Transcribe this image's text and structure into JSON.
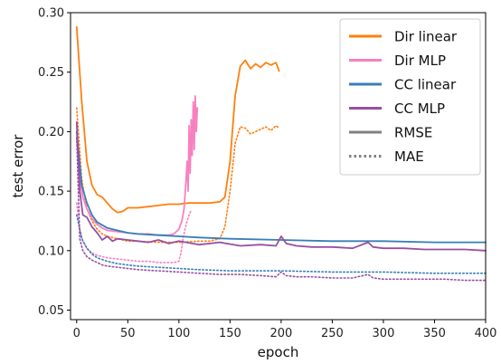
{
  "chart_data": {
    "type": "line",
    "xlabel": "epoch",
    "ylabel": "test error",
    "xlim": [
      -6,
      400
    ],
    "ylim": [
      0.042,
      0.3
    ],
    "x_ticks": [
      0,
      50,
      100,
      150,
      200,
      250,
      300,
      350,
      400
    ],
    "y_ticks": [
      0.05,
      0.1,
      0.15,
      0.2,
      0.25,
      0.3
    ],
    "y_tick_labels": [
      "0.05",
      "0.10",
      "0.15",
      "0.20",
      "0.25",
      "0.30"
    ],
    "grid": false,
    "legend_position": "top-right",
    "legend": [
      {
        "label": "Dir linear",
        "color": "#ff7f0e",
        "style": "solid"
      },
      {
        "label": "Dir MLP",
        "color": "#f781bf",
        "style": "solid"
      },
      {
        "label": "CC linear",
        "color": "#377eb8",
        "style": "solid"
      },
      {
        "label": "CC MLP",
        "color": "#984ea3",
        "style": "solid"
      },
      {
        "label": "RMSE",
        "color": "#808080",
        "style": "solid"
      },
      {
        "label": "MAE",
        "color": "#808080",
        "style": "dotted"
      }
    ],
    "series": [
      {
        "model": "Dir linear",
        "metric": "RMSE",
        "color": "#ff7f0e",
        "style": "solid",
        "x": [
          0,
          5,
          10,
          15,
          20,
          25,
          30,
          35,
          40,
          45,
          50,
          60,
          70,
          80,
          90,
          100,
          110,
          120,
          130,
          140,
          145,
          150,
          155,
          160,
          165,
          170,
          175,
          180,
          185,
          190,
          195,
          198
        ],
        "y": [
          0.288,
          0.225,
          0.175,
          0.155,
          0.147,
          0.145,
          0.14,
          0.135,
          0.132,
          0.133,
          0.136,
          0.136,
          0.137,
          0.138,
          0.139,
          0.139,
          0.14,
          0.14,
          0.14,
          0.141,
          0.145,
          0.175,
          0.23,
          0.255,
          0.26,
          0.253,
          0.257,
          0.254,
          0.258,
          0.256,
          0.258,
          0.251
        ]
      },
      {
        "model": "Dir linear",
        "metric": "MAE",
        "color": "#ff7f0e",
        "style": "dotted",
        "x": [
          0,
          5,
          10,
          15,
          20,
          25,
          30,
          40,
          50,
          60,
          80,
          100,
          120,
          130,
          140,
          145,
          150,
          155,
          160,
          165,
          170,
          175,
          180,
          185,
          190,
          195,
          198
        ],
        "y": [
          0.22,
          0.16,
          0.135,
          0.125,
          0.118,
          0.114,
          0.112,
          0.11,
          0.108,
          0.108,
          0.107,
          0.107,
          0.108,
          0.108,
          0.11,
          0.12,
          0.15,
          0.19,
          0.204,
          0.203,
          0.198,
          0.2,
          0.202,
          0.204,
          0.201,
          0.205,
          0.203
        ]
      },
      {
        "model": "Dir MLP",
        "metric": "RMSE",
        "color": "#f781bf",
        "style": "solid",
        "x": [
          0,
          3,
          6,
          10,
          15,
          20,
          25,
          30,
          40,
          50,
          60,
          70,
          80,
          90,
          95,
          100,
          103,
          105,
          107,
          108,
          109,
          110,
          111,
          112,
          113,
          114,
          115,
          116,
          117,
          118
        ],
        "y": [
          0.195,
          0.16,
          0.145,
          0.135,
          0.127,
          0.122,
          0.119,
          0.117,
          0.116,
          0.115,
          0.114,
          0.114,
          0.113,
          0.113,
          0.114,
          0.118,
          0.125,
          0.135,
          0.16,
          0.175,
          0.15,
          0.205,
          0.165,
          0.21,
          0.18,
          0.225,
          0.185,
          0.23,
          0.2,
          0.22
        ]
      },
      {
        "model": "Dir MLP",
        "metric": "MAE",
        "color": "#f781bf",
        "style": "dotted",
        "x": [
          0,
          3,
          6,
          10,
          15,
          20,
          25,
          30,
          40,
          50,
          60,
          70,
          80,
          90,
          95,
          100,
          102,
          104,
          106,
          108,
          110,
          112
        ],
        "y": [
          0.14,
          0.118,
          0.108,
          0.102,
          0.098,
          0.096,
          0.095,
          0.094,
          0.093,
          0.092,
          0.091,
          0.091,
          0.09,
          0.09,
          0.09,
          0.091,
          0.098,
          0.11,
          0.118,
          0.125,
          0.13,
          0.134
        ]
      },
      {
        "model": "CC linear",
        "metric": "RMSE",
        "color": "#377eb8",
        "style": "solid",
        "x": [
          0,
          5,
          10,
          15,
          20,
          30,
          40,
          50,
          60,
          80,
          100,
          120,
          150,
          200,
          250,
          300,
          350,
          400
        ],
        "y": [
          0.2,
          0.155,
          0.14,
          0.13,
          0.124,
          0.119,
          0.117,
          0.115,
          0.114,
          0.113,
          0.112,
          0.111,
          0.11,
          0.109,
          0.108,
          0.108,
          0.107,
          0.107
        ]
      },
      {
        "model": "CC linear",
        "metric": "MAE",
        "color": "#377eb8",
        "style": "dotted",
        "x": [
          0,
          5,
          10,
          15,
          20,
          30,
          40,
          50,
          60,
          80,
          100,
          120,
          150,
          200,
          250,
          300,
          350,
          400
        ],
        "y": [
          0.13,
          0.11,
          0.102,
          0.097,
          0.094,
          0.091,
          0.089,
          0.088,
          0.087,
          0.086,
          0.085,
          0.084,
          0.083,
          0.083,
          0.082,
          0.082,
          0.081,
          0.081
        ]
      },
      {
        "model": "CC MLP",
        "metric": "RMSE",
        "color": "#984ea3",
        "style": "solid",
        "x": [
          0,
          3,
          6,
          10,
          15,
          20,
          25,
          30,
          35,
          40,
          50,
          60,
          70,
          80,
          90,
          100,
          120,
          140,
          160,
          180,
          195,
          200,
          205,
          215,
          230,
          250,
          270,
          285,
          290,
          300,
          320,
          340,
          360,
          380,
          400
        ],
        "y": [
          0.208,
          0.15,
          0.13,
          0.128,
          0.12,
          0.115,
          0.109,
          0.112,
          0.108,
          0.11,
          0.109,
          0.108,
          0.107,
          0.109,
          0.106,
          0.108,
          0.105,
          0.107,
          0.104,
          0.105,
          0.104,
          0.112,
          0.106,
          0.104,
          0.103,
          0.103,
          0.102,
          0.107,
          0.103,
          0.102,
          0.102,
          0.101,
          0.101,
          0.101,
          0.1
        ]
      },
      {
        "model": "CC MLP",
        "metric": "MAE",
        "color": "#984ea3",
        "style": "dotted",
        "x": [
          0,
          3,
          6,
          10,
          15,
          20,
          25,
          30,
          40,
          50,
          60,
          80,
          100,
          120,
          140,
          160,
          180,
          195,
          200,
          205,
          215,
          230,
          250,
          270,
          285,
          290,
          300,
          320,
          340,
          360,
          380,
          400
        ],
        "y": [
          0.195,
          0.11,
          0.1,
          0.095,
          0.092,
          0.09,
          0.088,
          0.087,
          0.086,
          0.085,
          0.084,
          0.083,
          0.082,
          0.081,
          0.08,
          0.08,
          0.079,
          0.078,
          0.082,
          0.079,
          0.078,
          0.078,
          0.077,
          0.077,
          0.08,
          0.077,
          0.076,
          0.076,
          0.076,
          0.076,
          0.075,
          0.075
        ]
      }
    ]
  }
}
